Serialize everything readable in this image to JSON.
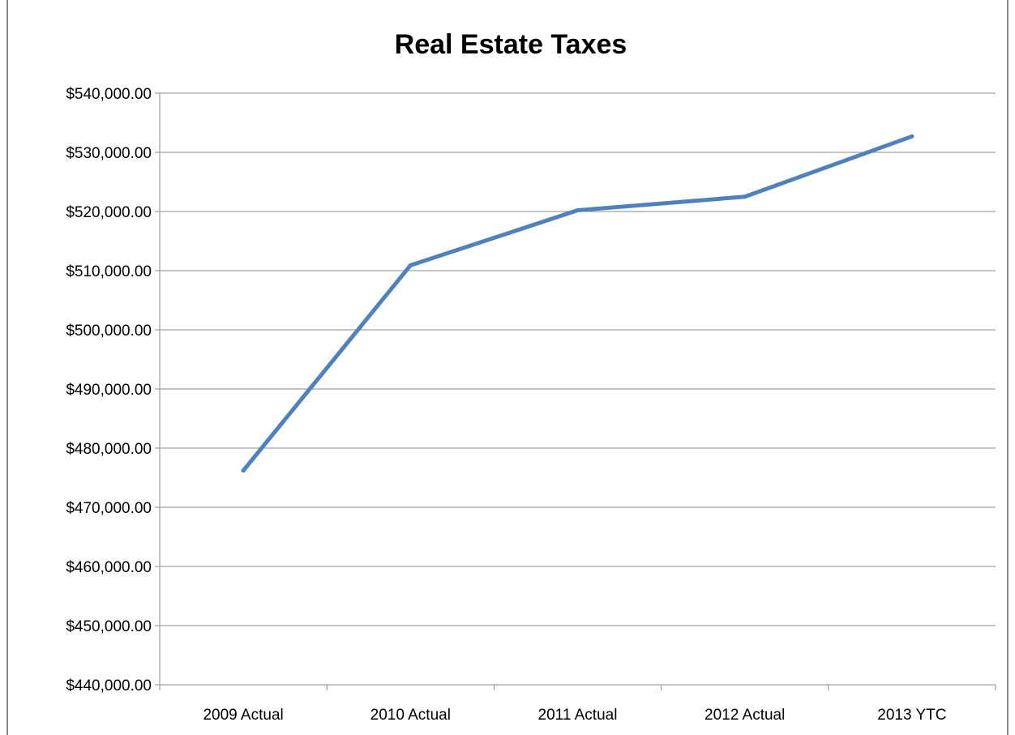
{
  "chart_data": {
    "type": "line",
    "title": "Real Estate Taxes",
    "xlabel": "",
    "ylabel": "",
    "categories": [
      "2009 Actual",
      "2010 Actual",
      "2011 Actual",
      "2012 Actual",
      "2013 YTC"
    ],
    "series": [
      {
        "values": [
          476200,
          510900,
          520200,
          522500,
          532700
        ],
        "color": "#4F81BD"
      }
    ],
    "ylim": [
      440000,
      540000
    ],
    "ytick_step": 10000,
    "ytick_labels": [
      "$440,000.00",
      "$450,000.00",
      "$460,000.00",
      "$470,000.00",
      "$480,000.00",
      "$490,000.00",
      "$500,000.00",
      "$510,000.00",
      "$520,000.00",
      "$530,000.00",
      "$540,000.00"
    ],
    "grid": true,
    "legend": "none"
  }
}
